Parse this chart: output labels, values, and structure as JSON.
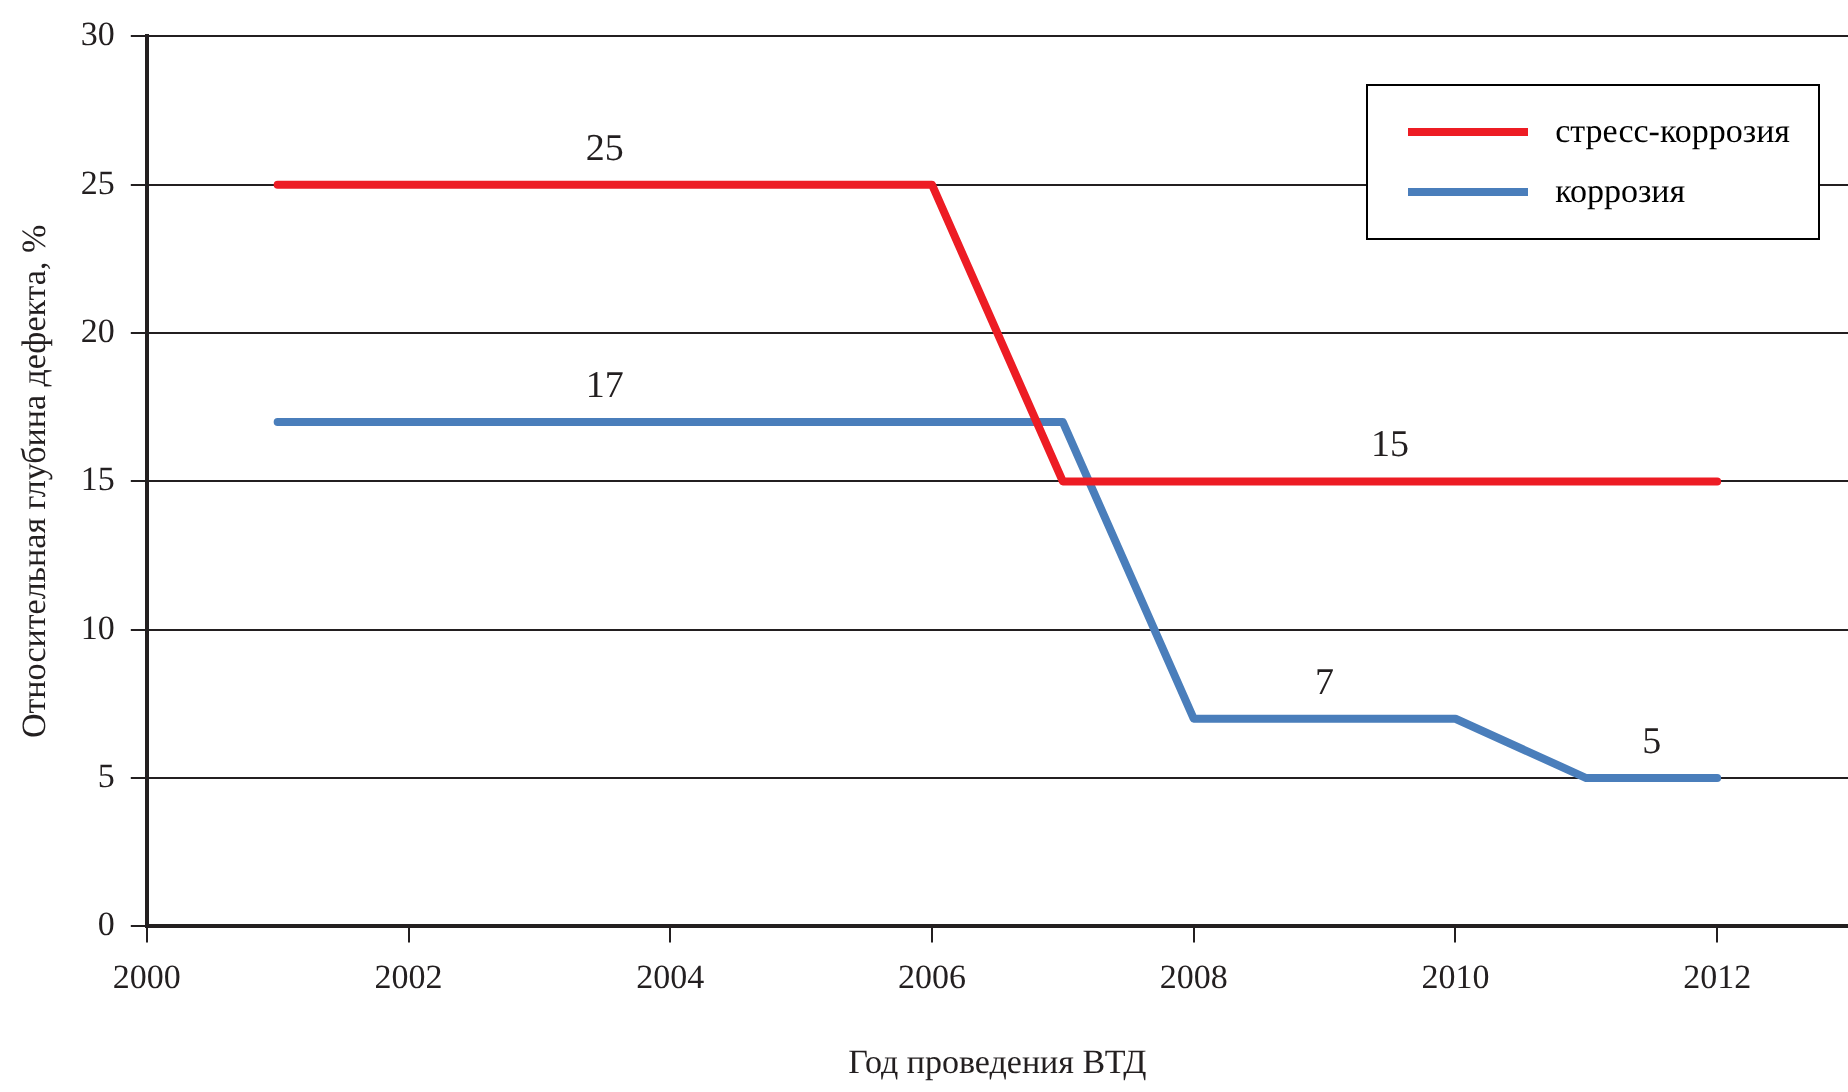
{
  "chart_data": {
    "type": "line",
    "xlabel": "Год проведения ВТД",
    "ylabel": "Относительная глубина дефекта, %",
    "xlim": [
      2000,
      2013
    ],
    "xticks": [
      2000,
      2002,
      2004,
      2006,
      2008,
      2010,
      2012
    ],
    "ylim": [
      0,
      30
    ],
    "yticks": [
      0,
      5,
      10,
      15,
      20,
      25,
      30
    ],
    "grid": "y",
    "legend": "top right",
    "marker": "none",
    "line_style": "solid",
    "series": [
      {
        "name": "стресс-коррозия",
        "color": "#ed1c24",
        "x": [
          2001,
          2006,
          2007,
          2012
        ],
        "values": [
          25,
          25,
          15,
          15
        ]
      },
      {
        "name": "коррозия",
        "color": "#4a7ebb",
        "x": [
          2001,
          2007,
          2008,
          2010,
          2011,
          2012
        ],
        "values": [
          17,
          17,
          7,
          7,
          5,
          5
        ]
      }
    ],
    "annotations": [
      {
        "text": "25",
        "x": 2003.5,
        "y": 25
      },
      {
        "text": "17",
        "x": 2003.5,
        "y": 17
      },
      {
        "text": "15",
        "x": 2009.5,
        "y": 15
      },
      {
        "text": "7",
        "x": 2009,
        "y": 7
      },
      {
        "text": "5",
        "x": 2011.5,
        "y": 5
      }
    ]
  }
}
